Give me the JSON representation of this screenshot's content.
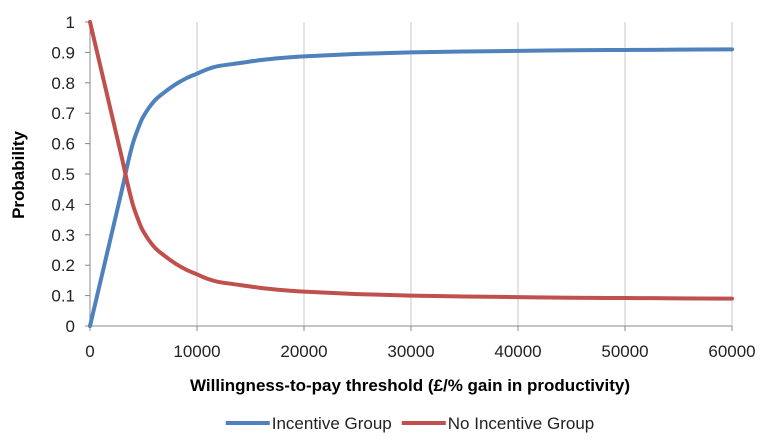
{
  "chart_data": {
    "type": "line",
    "xlabel": "Willingness-to-pay threshold (£/% gain in productivity)",
    "ylabel": "Probability",
    "xlim": [
      0,
      60000
    ],
    "ylim": [
      0,
      1
    ],
    "x_ticks": [
      "0",
      "10000",
      "20000",
      "30000",
      "40000",
      "50000",
      "60000"
    ],
    "y_ticks": [
      "0",
      "0.1",
      "0.2",
      "0.3",
      "0.4",
      "0.5",
      "0.6",
      "0.7",
      "0.8",
      "0.9",
      "1"
    ],
    "grid": "vertical",
    "legend_position": "bottom",
    "series": [
      {
        "name": "Incentive Group",
        "color": "#4f81bd",
        "x": [
          0,
          1000,
          2000,
          3000,
          3500,
          4000,
          4500,
          5000,
          6000,
          7000,
          8000,
          9000,
          10000,
          11000,
          12000,
          14000,
          16000,
          18000,
          20000,
          25000,
          30000,
          35000,
          40000,
          45000,
          50000,
          55000,
          60000
        ],
        "y": [
          0.0,
          0.15,
          0.3,
          0.45,
          0.53,
          0.6,
          0.65,
          0.69,
          0.74,
          0.77,
          0.795,
          0.815,
          0.83,
          0.845,
          0.855,
          0.865,
          0.875,
          0.882,
          0.887,
          0.895,
          0.9,
          0.903,
          0.905,
          0.907,
          0.908,
          0.909,
          0.91
        ]
      },
      {
        "name": "No Incentive Group",
        "color": "#c0504d",
        "x": [
          0,
          1000,
          2000,
          3000,
          3500,
          4000,
          4500,
          5000,
          6000,
          7000,
          8000,
          9000,
          10000,
          11000,
          12000,
          14000,
          16000,
          18000,
          20000,
          25000,
          30000,
          35000,
          40000,
          45000,
          50000,
          55000,
          60000
        ],
        "y": [
          1.0,
          0.85,
          0.7,
          0.55,
          0.47,
          0.4,
          0.35,
          0.31,
          0.26,
          0.23,
          0.205,
          0.185,
          0.17,
          0.155,
          0.145,
          0.135,
          0.125,
          0.118,
          0.113,
          0.105,
          0.1,
          0.097,
          0.095,
          0.093,
          0.092,
          0.091,
          0.09
        ]
      }
    ]
  }
}
